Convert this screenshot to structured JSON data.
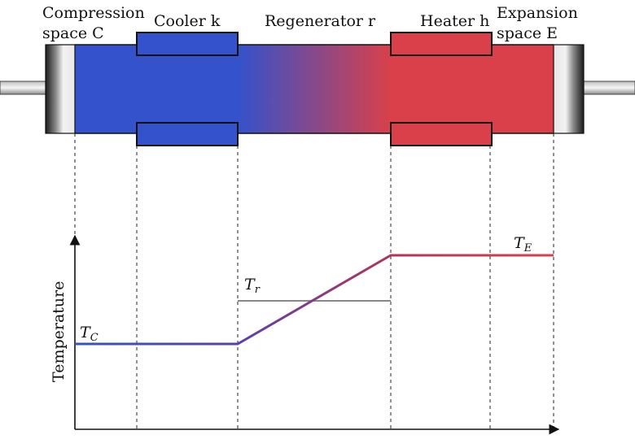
{
  "labels": {
    "compression_line1": "Compression",
    "compression_line2": "space C",
    "cooler": "Cooler k",
    "regenerator": "Regenerator r",
    "heater": "Heater h",
    "expansion_line1": "Expansion",
    "expansion_line2": "space E"
  },
  "plot": {
    "ylabel": "Temperature",
    "tc_main": "T",
    "tc_sub": "C",
    "tr_main": "T",
    "tr_sub": "r",
    "te_main": "T",
    "te_sub": "E"
  },
  "colors": {
    "cold": "#3352cc",
    "hot": "#d9404a",
    "cold_dark": "#2a3f9e",
    "hot_dark": "#b8323c"
  }
}
